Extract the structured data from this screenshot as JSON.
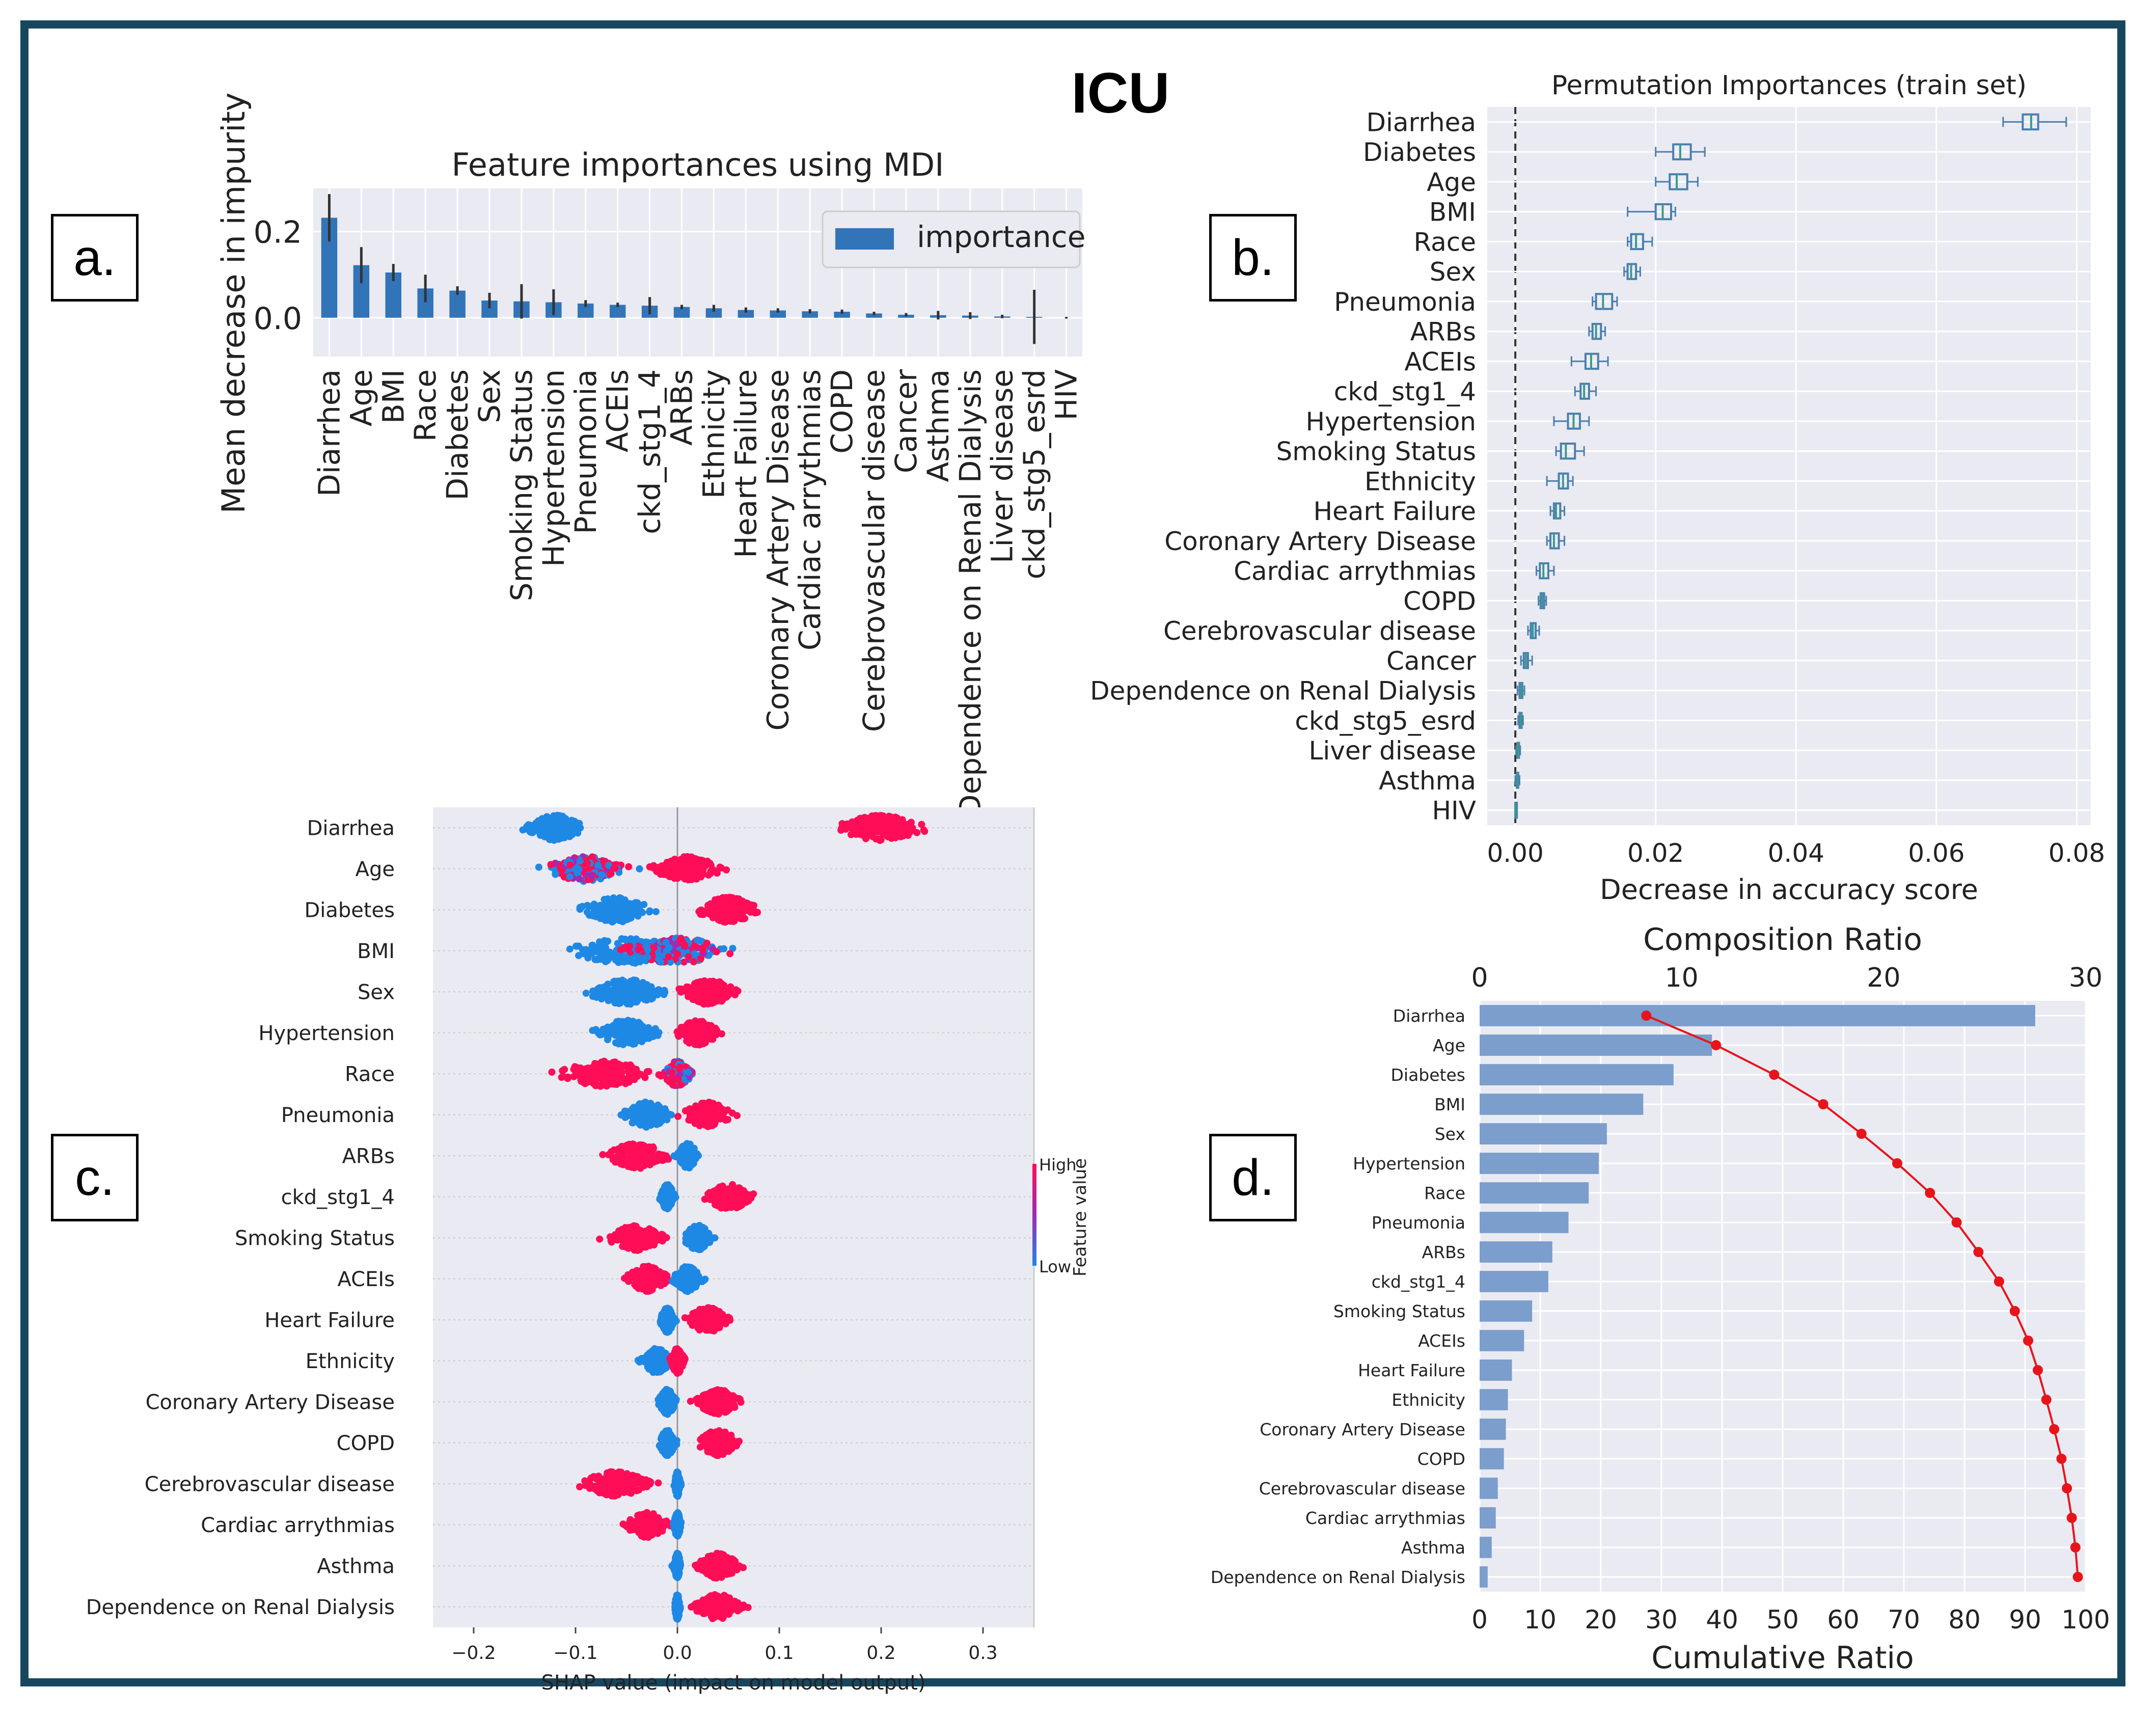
{
  "title": "ICU",
  "panel_labels": [
    "a.",
    "b.",
    "c.",
    "d."
  ],
  "chart_data": [
    {
      "id": "a",
      "type": "bar",
      "title": "Feature importances using MDI",
      "ylabel": "Mean decrease in impurity",
      "xlabel": "",
      "legend": [
        "importance"
      ],
      "legend_position": "top-right",
      "ylim": [
        -0.09,
        0.3
      ],
      "yticks": [
        0.0,
        0.2
      ],
      "ytick_labels": [
        "0.0",
        "0.2"
      ],
      "grid": true,
      "colors": {
        "bar": "#3274b8",
        "background": "#eaeaf2"
      },
      "categories": [
        "Diarrhea",
        "Age",
        "BMI",
        "Race",
        "Diabetes",
        "Sex",
        "Smoking Status",
        "Hypertension",
        "Pneumonia",
        "ACEIs",
        "ckd_stg1_4",
        "ARBs",
        "Ethnicity",
        "Heart Failure",
        "Coronary Artery Disease",
        "Cardiac arrythmias",
        "COPD",
        "Cerebrovascular disease",
        "Cancer",
        "Asthma",
        "Dependence on Renal Dialysis",
        "Liver disease",
        "ckd_stg5_esrd",
        "HIV"
      ],
      "values": [
        0.232,
        0.122,
        0.105,
        0.068,
        0.063,
        0.04,
        0.038,
        0.036,
        0.033,
        0.03,
        0.028,
        0.025,
        0.022,
        0.018,
        0.017,
        0.015,
        0.014,
        0.01,
        0.007,
        0.006,
        0.005,
        0.003,
        0.002,
        0.0
      ],
      "errors": [
        0.055,
        0.042,
        0.02,
        0.032,
        0.01,
        0.018,
        0.04,
        0.03,
        0.008,
        0.005,
        0.02,
        0.005,
        0.008,
        0.006,
        0.005,
        0.005,
        0.005,
        0.004,
        0.004,
        0.01,
        0.008,
        0.004,
        0.063,
        0.002
      ]
    },
    {
      "id": "b",
      "type": "box",
      "title": "Permutation Importances (train set)",
      "xlabel": "Decrease in accuracy score",
      "ylabel": "",
      "xlim": [
        -0.004,
        0.082
      ],
      "xticks": [
        0.0,
        0.02,
        0.04,
        0.06,
        0.08
      ],
      "xtick_labels": [
        "0.00",
        "0.02",
        "0.04",
        "0.06",
        "0.08"
      ],
      "grid": true,
      "colors": {
        "box": "#4a7fb0",
        "background": "#eaeaf2"
      },
      "categories": [
        "Diarrhea",
        "Diabetes",
        "Age",
        "BMI",
        "Race",
        "Sex",
        "Pneumonia",
        "ARBs",
        "ACEIs",
        "ckd_stg1_4",
        "Hypertension",
        "Smoking Status",
        "Ethnicity",
        "Heart Failure",
        "Coronary Artery Disease",
        "Cardiac arrythmias",
        "COPD",
        "Cerebrovascular disease",
        "Cancer",
        "Dependence on Renal Dialysis",
        "ckd_stg5_esrd",
        "Liver disease",
        "Asthma",
        "HIV"
      ],
      "boxes": [
        {
          "min": 0.0695,
          "q1": 0.0723,
          "median": 0.0735,
          "q3": 0.0745,
          "max": 0.0785
        },
        {
          "min": 0.02,
          "q1": 0.0225,
          "median": 0.0235,
          "q3": 0.025,
          "max": 0.027
        },
        {
          "min": 0.02,
          "q1": 0.022,
          "median": 0.023,
          "q3": 0.0245,
          "max": 0.026
        },
        {
          "min": 0.016,
          "q1": 0.02,
          "median": 0.021,
          "q3": 0.0222,
          "max": 0.0228
        },
        {
          "min": 0.016,
          "q1": 0.0165,
          "median": 0.0172,
          "q3": 0.0182,
          "max": 0.0195
        },
        {
          "min": 0.0155,
          "q1": 0.016,
          "median": 0.0165,
          "q3": 0.0172,
          "max": 0.0178
        },
        {
          "min": 0.011,
          "q1": 0.0115,
          "median": 0.0125,
          "q3": 0.0138,
          "max": 0.0145
        },
        {
          "min": 0.0105,
          "q1": 0.011,
          "median": 0.0115,
          "q3": 0.0122,
          "max": 0.0128
        },
        {
          "min": 0.008,
          "q1": 0.01,
          "median": 0.0108,
          "q3": 0.0118,
          "max": 0.0132
        },
        {
          "min": 0.0085,
          "q1": 0.0093,
          "median": 0.0098,
          "q3": 0.0105,
          "max": 0.0115
        },
        {
          "min": 0.0055,
          "q1": 0.0075,
          "median": 0.0083,
          "q3": 0.0092,
          "max": 0.0105
        },
        {
          "min": 0.0058,
          "q1": 0.0065,
          "median": 0.0072,
          "q3": 0.0085,
          "max": 0.0098
        },
        {
          "min": 0.0045,
          "q1": 0.0062,
          "median": 0.0068,
          "q3": 0.0075,
          "max": 0.0082
        },
        {
          "min": 0.005,
          "q1": 0.0055,
          "median": 0.0058,
          "q3": 0.0064,
          "max": 0.007
        },
        {
          "min": 0.0045,
          "q1": 0.005,
          "median": 0.0055,
          "q3": 0.0062,
          "max": 0.007
        },
        {
          "min": 0.003,
          "q1": 0.0035,
          "median": 0.004,
          "q3": 0.0047,
          "max": 0.0055
        },
        {
          "min": 0.0033,
          "q1": 0.0036,
          "median": 0.0038,
          "q3": 0.0041,
          "max": 0.0044
        },
        {
          "min": 0.0018,
          "q1": 0.0022,
          "median": 0.0025,
          "q3": 0.0029,
          "max": 0.0034
        },
        {
          "min": 0.0008,
          "q1": 0.0012,
          "median": 0.0015,
          "q3": 0.0018,
          "max": 0.0024
        },
        {
          "min": 0.0003,
          "q1": 0.0006,
          "median": 0.0008,
          "q3": 0.001,
          "max": 0.0013
        },
        {
          "min": 0.0004,
          "q1": 0.0006,
          "median": 0.0008,
          "q3": 0.0009,
          "max": 0.0011
        },
        {
          "min": 0.0001,
          "q1": 0.0003,
          "median": 0.0004,
          "q3": 0.0005,
          "max": 0.0007
        },
        {
          "min": 0.0,
          "q1": 0.0002,
          "median": 0.0003,
          "q3": 0.0004,
          "max": 0.0006
        },
        {
          "min": 0.0,
          "q1": 0.0,
          "median": 0.0,
          "q3": 0.0,
          "max": 0.0
        }
      ]
    },
    {
      "id": "c",
      "type": "scatter",
      "subtype": "shap-beeswarm",
      "xlabel": "SHAP value (impact on model output)",
      "ylabel": "",
      "xlim": [
        -0.24,
        0.35
      ],
      "xticks": [
        -0.2,
        -0.1,
        0.0,
        0.1,
        0.2,
        0.3
      ],
      "xtick_labels": [
        "−0.2",
        "−0.1",
        "0.0",
        "0.1",
        "0.2",
        "0.3"
      ],
      "colorbar": {
        "title": "Feature value",
        "high": "High",
        "low": "Low"
      },
      "colors": {
        "high": "#ff0d57",
        "low": "#1e88e5",
        "mid": "#a02ab5",
        "background": "#eaeaf2"
      },
      "categories": [
        "Diarrhea",
        "Age",
        "Diabetes",
        "BMI",
        "Sex",
        "Hypertension",
        "Race",
        "Pneumonia",
        "ARBs",
        "ckd_stg1_4",
        "Smoking Status",
        "ACEIs",
        "Heart Failure",
        "Ethnicity",
        "Coronary Artery Disease",
        "COPD",
        "Cerebrovascular disease",
        "Cardiac arrythmias",
        "Asthma",
        "Dependence on Renal Dialysis"
      ],
      "clusters": [
        [
          {
            "c": -0.12,
            "s": 0.04,
            "v": "low"
          },
          {
            "c": 0.2,
            "s": 0.065,
            "v": "high"
          }
        ],
        [
          {
            "c": -0.09,
            "s": 0.055,
            "v": "mix"
          },
          {
            "c": 0.01,
            "s": 0.05,
            "v": "high"
          }
        ],
        [
          {
            "c": -0.06,
            "s": 0.05,
            "v": "low"
          },
          {
            "c": 0.05,
            "s": 0.045,
            "v": "high"
          }
        ],
        [
          {
            "c": -0.05,
            "s": 0.09,
            "v": "low"
          },
          {
            "c": 0.0,
            "s": 0.08,
            "v": "mix"
          }
        ],
        [
          {
            "c": -0.05,
            "s": 0.055,
            "v": "low"
          },
          {
            "c": 0.03,
            "s": 0.04,
            "v": "high"
          }
        ],
        [
          {
            "c": -0.05,
            "s": 0.045,
            "v": "low"
          },
          {
            "c": 0.02,
            "s": 0.03,
            "v": "high"
          }
        ],
        [
          {
            "c": -0.07,
            "s": 0.07,
            "v": "high"
          },
          {
            "c": 0.0,
            "s": 0.02,
            "v": "mix"
          }
        ],
        [
          {
            "c": -0.03,
            "s": 0.035,
            "v": "low"
          },
          {
            "c": 0.03,
            "s": 0.035,
            "v": "high"
          }
        ],
        [
          {
            "c": -0.04,
            "s": 0.045,
            "v": "high"
          },
          {
            "c": 0.01,
            "s": 0.015,
            "v": "low"
          }
        ],
        [
          {
            "c": -0.01,
            "s": 0.01,
            "v": "low"
          },
          {
            "c": 0.05,
            "s": 0.035,
            "v": "high"
          }
        ],
        [
          {
            "c": -0.04,
            "s": 0.04,
            "v": "high"
          },
          {
            "c": 0.02,
            "s": 0.02,
            "v": "low"
          }
        ],
        [
          {
            "c": -0.03,
            "s": 0.03,
            "v": "high"
          },
          {
            "c": 0.01,
            "s": 0.02,
            "v": "low"
          }
        ],
        [
          {
            "c": -0.01,
            "s": 0.01,
            "v": "low"
          },
          {
            "c": 0.03,
            "s": 0.03,
            "v": "high"
          }
        ],
        [
          {
            "c": -0.02,
            "s": 0.02,
            "v": "low"
          },
          {
            "c": 0.0,
            "s": 0.01,
            "v": "high"
          }
        ],
        [
          {
            "c": -0.01,
            "s": 0.012,
            "v": "low"
          },
          {
            "c": 0.04,
            "s": 0.03,
            "v": "high"
          }
        ],
        [
          {
            "c": -0.01,
            "s": 0.012,
            "v": "low"
          },
          {
            "c": 0.04,
            "s": 0.03,
            "v": "high"
          }
        ],
        [
          {
            "c": -0.06,
            "s": 0.05,
            "v": "high"
          },
          {
            "c": 0.0,
            "s": 0.004,
            "v": "low"
          }
        ],
        [
          {
            "c": -0.03,
            "s": 0.03,
            "v": "high"
          },
          {
            "c": 0.0,
            "s": 0.005,
            "v": "low"
          }
        ],
        [
          {
            "c": 0.0,
            "s": 0.005,
            "v": "low"
          },
          {
            "c": 0.04,
            "s": 0.03,
            "v": "high"
          }
        ],
        [
          {
            "c": 0.0,
            "s": 0.004,
            "v": "low"
          },
          {
            "c": 0.04,
            "s": 0.035,
            "v": "high"
          }
        ]
      ]
    },
    {
      "id": "d",
      "type": "bar",
      "subtype": "horizontal-bar-with-cumulative-line",
      "xlabel_top": "Composition Ratio",
      "xlabel_bottom": "Cumulative Ratio",
      "ylabel": "",
      "xlim_top": [
        0,
        30
      ],
      "xticks_top": [
        0,
        10,
        20,
        30
      ],
      "xtick_labels_top": [
        "0",
        "10",
        "20",
        "30"
      ],
      "xlim_bottom": [
        0,
        100
      ],
      "xticks_bottom": [
        0,
        10,
        20,
        30,
        40,
        50,
        60,
        70,
        80,
        90,
        100
      ],
      "xtick_labels_bottom": [
        "0",
        "10",
        "20",
        "30",
        "40",
        "50",
        "60",
        "70",
        "80",
        "90",
        "100"
      ],
      "grid": true,
      "colors": {
        "bar": "#7b9ecc",
        "line": "#e8141b",
        "background": "#eaeaf2"
      },
      "categories": [
        "Diarrhea",
        "Age",
        "Diabetes",
        "BMI",
        "Sex",
        "Hypertension",
        "Race",
        "Pneumonia",
        "ARBs",
        "ckd_stg1_4",
        "Smoking Status",
        "ACEIs",
        "Heart Failure",
        "Ethnicity",
        "Coronary Artery Disease",
        "COPD",
        "Cerebrovascular disease",
        "Cardiac arrythmias",
        "Asthma",
        "Dependence on Renal Dialysis"
      ],
      "composition_ratio": [
        27.5,
        11.5,
        9.6,
        8.1,
        6.3,
        5.9,
        5.4,
        4.4,
        3.6,
        3.4,
        2.6,
        2.2,
        1.6,
        1.4,
        1.3,
        1.2,
        0.9,
        0.8,
        0.6,
        0.4
      ],
      "cumulative_ratio": [
        27.5,
        39.0,
        48.6,
        56.7,
        63.0,
        68.9,
        74.3,
        78.7,
        82.3,
        85.7,
        88.3,
        90.5,
        92.1,
        93.5,
        94.8,
        96.0,
        96.9,
        97.7,
        98.3,
        98.7
      ]
    }
  ]
}
